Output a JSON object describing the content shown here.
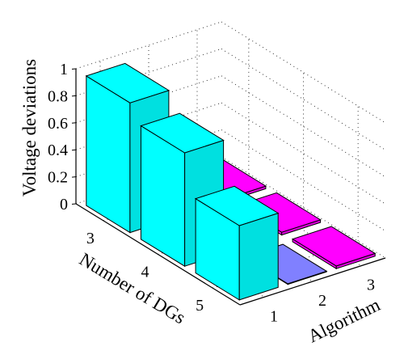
{
  "chart_data": {
    "type": "bar3d",
    "ylabel": "Voltage deviations",
    "xlabel": "Number of DGs",
    "zlabel": "Algorithm",
    "x_categories": [
      "3",
      "4",
      "5"
    ],
    "algorithm_categories": [
      "1",
      "2",
      "3"
    ],
    "yticks": [
      "0",
      "0.2",
      "0.4",
      "0.6",
      "0.8",
      "1"
    ],
    "ylim": [
      0,
      1
    ],
    "grid": true,
    "series": [
      {
        "name": "1",
        "values": [
          0.96,
          0.84,
          0.55
        ],
        "color": "#00ffff"
      },
      {
        "name": "2",
        "values": [
          0.0,
          0.0,
          0.0
        ],
        "color": "#8080ff"
      },
      {
        "name": "3",
        "values": [
          0.02,
          0.02,
          0.02
        ],
        "color": "#ff00ff"
      }
    ]
  }
}
